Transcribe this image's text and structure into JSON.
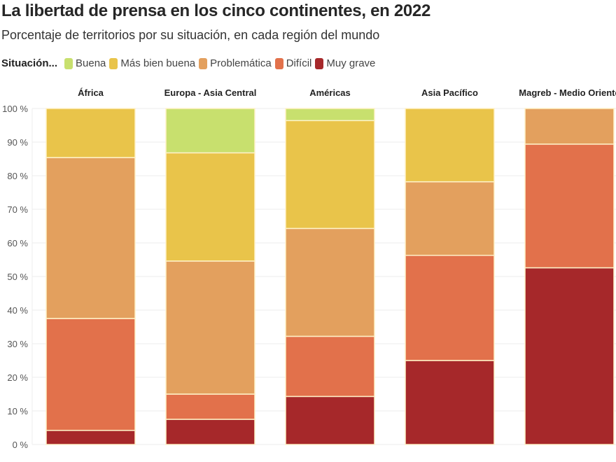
{
  "chart_data": {
    "type": "bar",
    "stacked": true,
    "title": "La libertad de prensa en los cinco continentes, en 2022",
    "subtitle": "Porcentaje de territorios por su situación, en cada región del mundo",
    "legend_title": "Situación...",
    "legend_placement": "top-left",
    "categories": [
      "África",
      "Europa - Asia Central",
      "Américas",
      "Asia Pacífico",
      "Magreb - Medio Oriente"
    ],
    "ylim": [
      0,
      100
    ],
    "yticks": [
      0,
      10,
      20,
      30,
      40,
      50,
      60,
      70,
      80,
      90,
      100
    ],
    "ytick_suffix": " %",
    "grid": true,
    "series": [
      {
        "name": "Muy grave",
        "color": "#a6282a",
        "values": [
          4.2,
          7.5,
          14.3,
          25.0,
          52.6
        ]
      },
      {
        "name": "Difícil",
        "color": "#e2714b",
        "values": [
          33.3,
          7.5,
          17.9,
          31.3,
          36.8
        ]
      },
      {
        "name": "Problemática",
        "color": "#e3a05e",
        "values": [
          47.9,
          39.6,
          32.1,
          21.9,
          10.6
        ]
      },
      {
        "name": "Más bien buena",
        "color": "#e9c44a",
        "values": [
          14.6,
          32.2,
          32.1,
          21.8,
          0
        ]
      },
      {
        "name": "Buena",
        "color": "#c8e06e",
        "values": [
          0,
          13.2,
          3.6,
          0,
          0
        ]
      }
    ],
    "legend_order": [
      "Buena",
      "Más bien buena",
      "Problemática",
      "Difícil",
      "Muy grave"
    ]
  }
}
